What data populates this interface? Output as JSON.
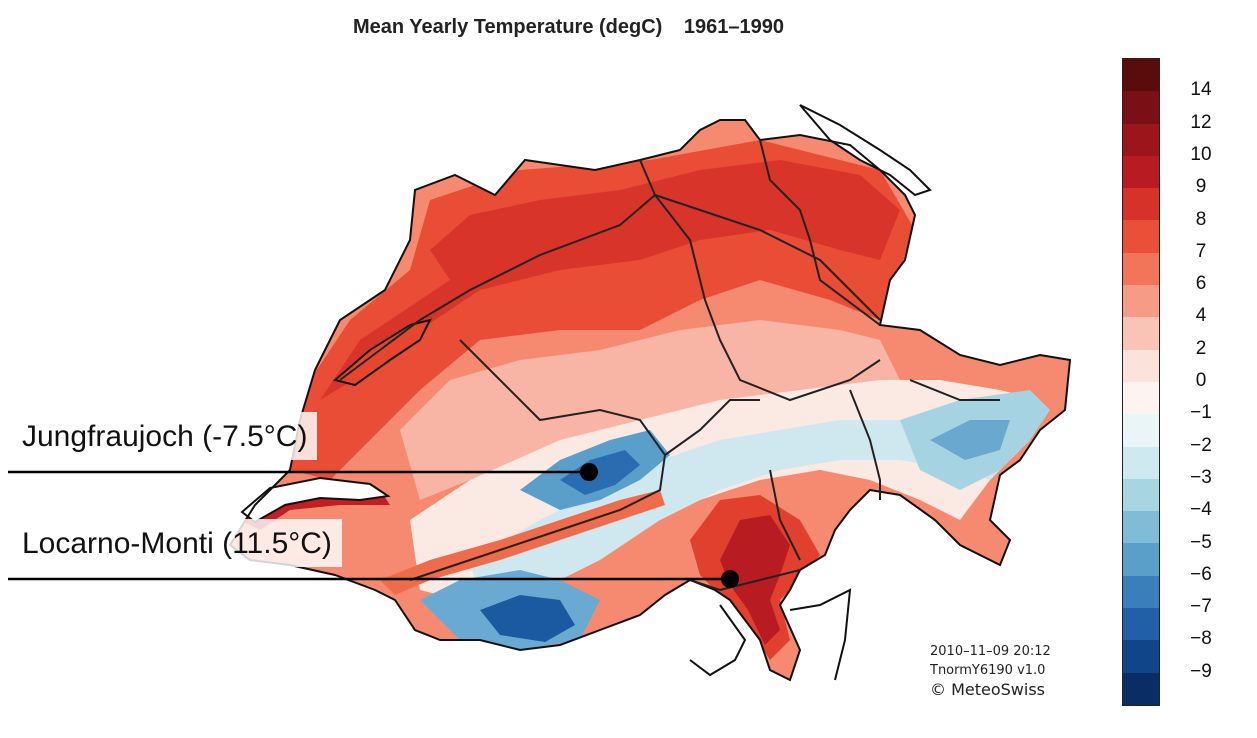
{
  "title": {
    "main": "Mean Yearly Temperature (degC)",
    "period": "1961–1990"
  },
  "colorbar": {
    "labels": [
      "14",
      "12",
      "10",
      "9",
      "8",
      "7",
      "6",
      "4",
      "2",
      "0",
      "−1",
      "−2",
      "−3",
      "−4",
      "−5",
      "−6",
      "−7",
      "−8",
      "−9"
    ],
    "colors": [
      "#5a0b0b",
      "#7a1015",
      "#9c151b",
      "#b81c22",
      "#d63229",
      "#ea5037",
      "#f27559",
      "#f69c86",
      "#f9c4b6",
      "#fbe3dc",
      "#fdf4f2",
      "#eaf5f8",
      "#cfe9f0",
      "#a8d5e2",
      "#80bcd6",
      "#5a9fca",
      "#3a7fbb",
      "#2160a8",
      "#10458a",
      "#092d64"
    ]
  },
  "annotations": [
    {
      "label": "Jungfraujoch (-7.5°C)"
    },
    {
      "label": "Locarno-Monti (11.5°C)"
    }
  ],
  "credit": {
    "line1": "2010–11–09 20:12",
    "line2": "TnormY6190 v1.0",
    "line3": "© MeteoSwiss"
  },
  "colors": {
    "warm": "#e8452f",
    "hot": "#c61d22",
    "cool": "#f6b3a2",
    "cold": "#5a9fca",
    "coldest": "#1d5aa1",
    "border": "#111111"
  }
}
